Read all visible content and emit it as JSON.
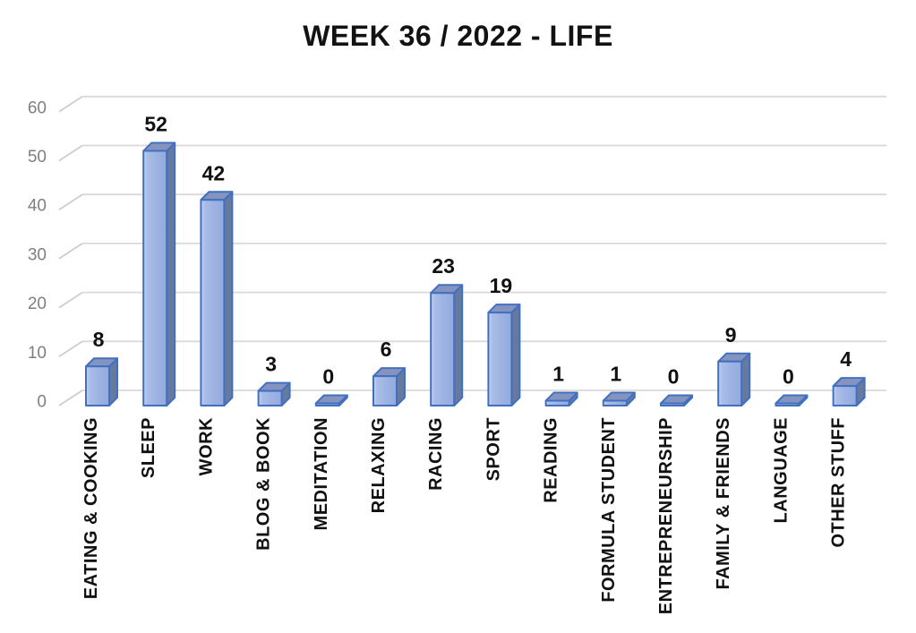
{
  "chart_data": {
    "type": "bar",
    "style": "3d-column",
    "title": "WEEK 36 / 2022 - LIFE",
    "categories": [
      "EATING & COOKING",
      "SLEEP",
      "WORK",
      "BLOG & BOOK",
      "MEDITATION",
      "RELAXING",
      "RACING",
      "SPORT",
      "READING",
      "FORMULA STUDENT",
      "ENTREPRENEURSHIP",
      "FAMILY & FRIENDS",
      "LANGUAGE",
      "OTHER STUFF"
    ],
    "values": [
      8,
      52,
      42,
      3,
      0,
      6,
      23,
      19,
      1,
      1,
      0,
      9,
      0,
      4
    ],
    "value_labels": [
      "8",
      "52",
      "42",
      "3",
      "0",
      "6",
      "23",
      "19",
      "1",
      "1",
      "0",
      "9",
      "0",
      "4"
    ],
    "xlabel": "",
    "ylabel": "",
    "ylim": [
      0,
      60
    ],
    "yticks": [
      0,
      10,
      20,
      30,
      40,
      50,
      60
    ],
    "grid": true,
    "legend_position": "none",
    "colors": {
      "bar_front": "#9db3e2",
      "bar_front_highlight": "#c9d4f1",
      "bar_top": "#8494bf",
      "bar_side": "#67799f",
      "bar_outline": "#4270c0",
      "gridline": "#d9d9d9",
      "tick_label": "#7f7f7f",
      "data_label": "#111111",
      "title": "#121212",
      "background": "#ffffff"
    }
  }
}
